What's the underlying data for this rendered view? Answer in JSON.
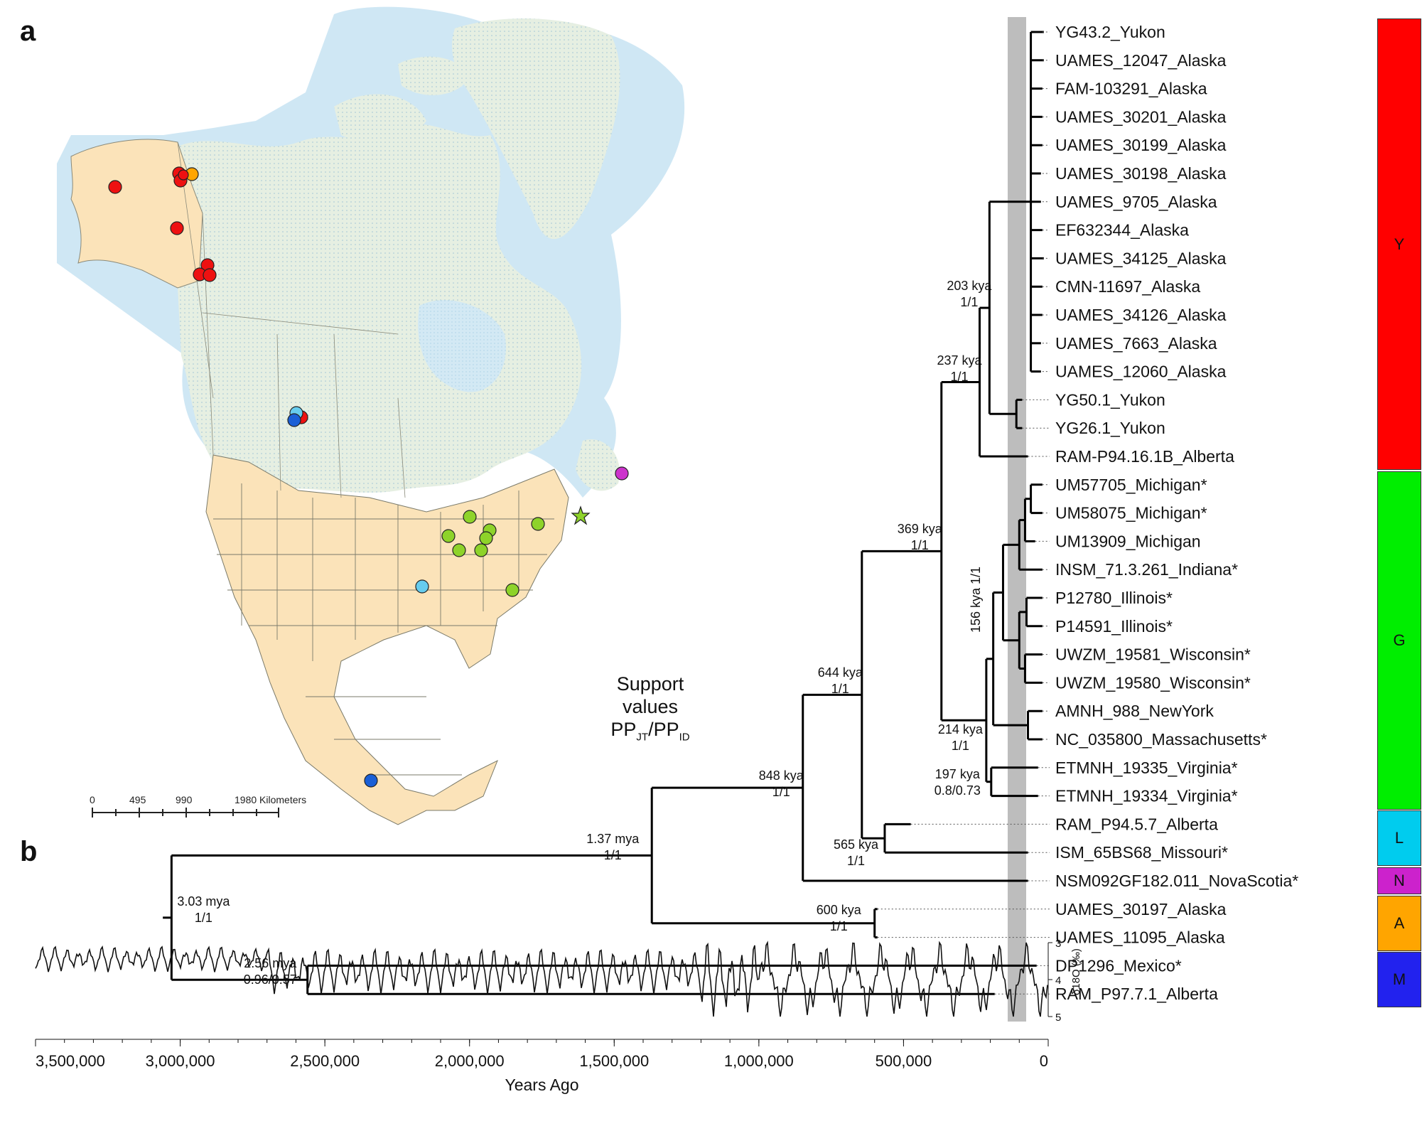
{
  "panels": {
    "a": "a",
    "b": "b"
  },
  "map": {
    "scale": {
      "ticks": [
        "0",
        "495",
        "990",
        "1980 Kilometers"
      ]
    },
    "colors": {
      "land_highlight": "#fbe3b9",
      "land_other": "#e3eedb",
      "water": "#c8e4f2",
      "Y": "#ee1111",
      "G": "#8ed32a",
      "L": "#66ccee",
      "N": "#cc33cc",
      "A": "#ffa500",
      "M": "#1a5fd6",
      "star": "#8ed32a"
    }
  },
  "support_legend": {
    "line1": "Support values",
    "pp": "PP",
    "jt": "JT",
    "slash": "/",
    "id": "ID"
  },
  "tree": {
    "tips": [
      "YG43.2_Yukon",
      "UAMES_12047_Alaska",
      "FAM-103291_Alaska",
      "UAMES_30201_Alaska",
      "UAMES_30199_Alaska",
      "UAMES_30198_Alaska",
      "UAMES_9705_Alaska",
      "EF632344_Alaska",
      "UAMES_34125_Alaska",
      "CMN-11697_Alaska",
      "UAMES_34126_Alaska",
      "UAMES_7663_Alaska",
      "UAMES_12060_Alaska",
      "YG50.1_Yukon",
      "YG26.1_Yukon",
      "RAM-P94.16.1B_Alberta",
      "UM57705_Michigan*",
      "UM58075_Michigan*",
      "UM13909_Michigan",
      "INSM_71.3.261_Indiana*",
      "P12780_Illinois*",
      "P14591_Illinois*",
      "UWZM_19581_Wisconsin*",
      "UWZM_19580_Wisconsin*",
      "AMNH_988_NewYork",
      "NC_035800_Massachusetts*",
      "ETMNH_19335_Virginia*",
      "ETMNH_19334_Virginia*",
      "RAM_P94.5.7_Alberta",
      "ISM_65BS68_Missouri*",
      "NSM092GF182.011_NovaScotia*",
      "UAMES_30197_Alaska",
      "UAMES_11095_Alaska",
      "DP1296_Mexico*",
      "RAM_P97.7.1_Alberta"
    ],
    "nodes": {
      "n203": {
        "age": "203 kya",
        "pp": "1/1"
      },
      "n237": {
        "age": "237 kya",
        "pp": "1/1"
      },
      "n369": {
        "age": "369 kya",
        "pp": "1/1"
      },
      "n156": {
        "age": "156 kya",
        "pp": "1/1"
      },
      "n644": {
        "age": "644 kya",
        "pp": "1/1"
      },
      "n214": {
        "age": "214 kya",
        "pp": "1/1"
      },
      "n197": {
        "age": "197 kya",
        "pp": "0.8/0.73"
      },
      "n848": {
        "age": "848 kya",
        "pp": "1/1"
      },
      "n565": {
        "age": "565 kya",
        "pp": "1/1"
      },
      "n137": {
        "age": "1.37 mya",
        "pp": "1/1"
      },
      "n303": {
        "age": "3.03 mya",
        "pp": "1/1"
      },
      "n600": {
        "age": "600 kya",
        "pp": "1/1"
      },
      "n256": {
        "age": "2.56 mya",
        "pp": "0.96/0.57"
      }
    }
  },
  "clades": [
    {
      "label": "Y",
      "color": "#ff0000"
    },
    {
      "label": "G",
      "color": "#00ee00"
    },
    {
      "label": "L",
      "color": "#00ccee"
    },
    {
      "label": "N",
      "color": "#cc22cc"
    },
    {
      "label": "A",
      "color": "#ffa500"
    },
    {
      "label": "M",
      "color": "#2222ee"
    }
  ],
  "axis": {
    "xlabel": "Years Ago",
    "ticks": [
      "3,500,000",
      "3,000,000",
      "2,500,000",
      "2,000,000",
      "1,500,000",
      "1,000,000",
      "500,000",
      "0"
    ],
    "y_ticks": [
      "3",
      "4",
      "5"
    ],
    "y_label": "δ18O (‰)"
  }
}
